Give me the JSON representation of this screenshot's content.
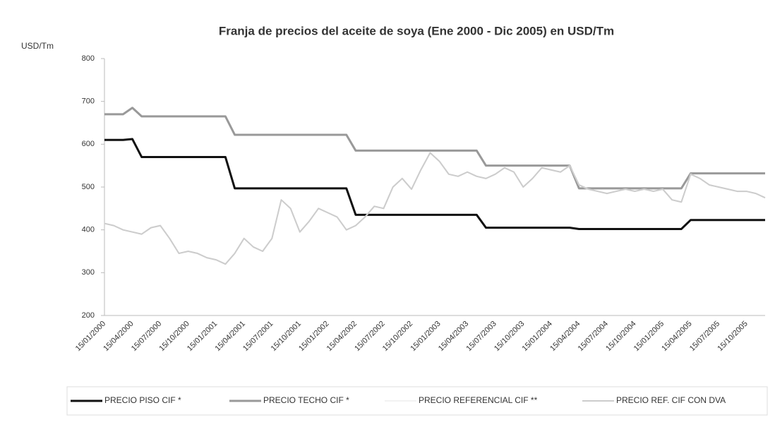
{
  "chart_data": {
    "type": "line",
    "title": "Franja de precios del aceite de soya (Ene 2000 - Dic 2005) en USD/Tm",
    "y_label": "USD/Tm",
    "categories": [
      "15/01/2000",
      null,
      null,
      "15/04/2000",
      null,
      null,
      "15/07/2000",
      null,
      null,
      "15/10/2000",
      null,
      null,
      "15/01/2001",
      null,
      null,
      "15/04/2001",
      null,
      null,
      "15/07/2001",
      null,
      null,
      "15/10/2001",
      null,
      null,
      "15/01/2002",
      null,
      null,
      "15/04/2002",
      null,
      null,
      "15/07/2002",
      null,
      null,
      "15/10/2002",
      null,
      null,
      "15/01/2003",
      null,
      null,
      "15/04/2003",
      null,
      null,
      "15/07/2003",
      null,
      null,
      "15/10/2003",
      null,
      null,
      "15/01/2004",
      null,
      null,
      "15/04/2004",
      null,
      null,
      "15/07/2004",
      null,
      null,
      "15/10/2004",
      null,
      null,
      "15/01/2005",
      null,
      null,
      "15/04/2005",
      null,
      null,
      "15/07/2005",
      null,
      null,
      "15/10/2005",
      null,
      null
    ],
    "series": [
      {
        "name": "PRECIO PISO CIF *",
        "color": "#111111",
        "width": 3,
        "values": [
          610,
          610,
          610,
          612,
          570,
          570,
          570,
          570,
          570,
          570,
          570,
          570,
          570,
          570,
          497,
          497,
          497,
          497,
          497,
          497,
          497,
          497,
          497,
          497,
          497,
          497,
          497,
          435,
          435,
          435,
          435,
          435,
          435,
          435,
          435,
          435,
          435,
          435,
          435,
          435,
          435,
          405,
          405,
          405,
          405,
          405,
          405,
          405,
          405,
          405,
          405,
          402,
          402,
          402,
          402,
          402,
          402,
          402,
          402,
          402,
          402,
          402,
          402,
          423,
          423,
          423,
          423,
          423,
          423,
          423,
          423,
          423
        ]
      },
      {
        "name": "PRECIO TECHO CIF *",
        "color": "#999999",
        "width": 3,
        "values": [
          670,
          670,
          670,
          685,
          665,
          665,
          665,
          665,
          665,
          665,
          665,
          665,
          665,
          665,
          622,
          622,
          622,
          622,
          622,
          622,
          622,
          622,
          622,
          622,
          622,
          622,
          622,
          585,
          585,
          585,
          585,
          585,
          585,
          585,
          585,
          585,
          585,
          585,
          585,
          585,
          585,
          550,
          550,
          550,
          550,
          550,
          550,
          550,
          550,
          550,
          550,
          497,
          497,
          497,
          497,
          497,
          497,
          497,
          497,
          497,
          497,
          497,
          497,
          532,
          532,
          532,
          532,
          532,
          532,
          532,
          532,
          532
        ]
      },
      {
        "name": "PRECIO REFERENCIAL CIF **",
        "color": "#f2f2f2",
        "width": 2,
        "values": [
          415,
          410,
          400,
          395,
          390,
          405,
          410,
          380,
          345,
          350,
          345,
          335,
          330,
          320,
          345,
          380,
          360,
          350,
          380,
          470,
          450,
          395,
          420,
          450,
          440,
          430,
          400,
          410,
          430,
          455,
          450,
          500,
          520,
          495,
          540,
          580,
          560,
          530,
          525,
          535,
          525,
          520,
          530,
          545,
          535,
          500,
          520,
          545,
          540,
          535,
          550,
          505,
          495,
          490,
          485,
          490,
          495,
          490,
          495,
          490,
          495,
          470,
          465,
          530,
          520,
          505,
          500,
          495,
          490,
          490,
          485,
          475
        ]
      },
      {
        "name": "PRECIO REF. CIF CON DVA",
        "color": "#cccccc",
        "width": 2,
        "values": [
          415,
          410,
          400,
          395,
          390,
          405,
          410,
          380,
          345,
          350,
          345,
          335,
          330,
          320,
          345,
          380,
          360,
          350,
          380,
          470,
          450,
          395,
          420,
          450,
          440,
          430,
          400,
          410,
          430,
          455,
          450,
          500,
          520,
          495,
          540,
          580,
          560,
          530,
          525,
          535,
          525,
          520,
          530,
          545,
          535,
          500,
          520,
          545,
          540,
          535,
          550,
          505,
          495,
          490,
          485,
          490,
          495,
          490,
          495,
          490,
          495,
          470,
          465,
          530,
          520,
          505,
          500,
          495,
          490,
          490,
          485,
          475
        ]
      }
    ],
    "ylim": [
      200,
      800
    ],
    "yticks": [
      200,
      300,
      400,
      500,
      600,
      700,
      800
    ],
    "grid": false,
    "legend": "bottom"
  }
}
